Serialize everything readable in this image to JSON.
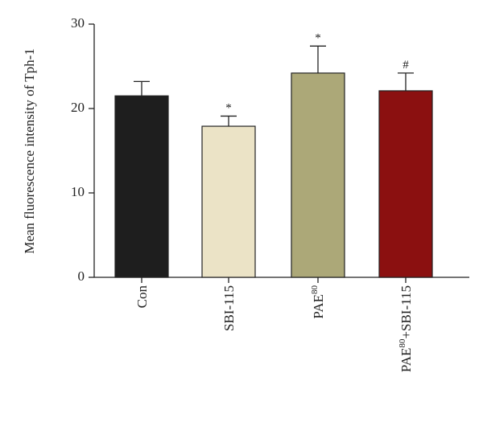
{
  "chart_data": {
    "type": "bar",
    "y_label": "Mean fluorescence intensity of Tph-1",
    "categories": [
      [
        "Con"
      ],
      [
        "SBI-115"
      ],
      [
        "PAE",
        "80"
      ],
      [
        "PAE",
        "80",
        "+SBI-115"
      ]
    ],
    "values": [
      21.5,
      17.9,
      24.2,
      22.1
    ],
    "errors": [
      1.7,
      1.2,
      3.2,
      2.1
    ],
    "annotations": [
      null,
      "*",
      "*",
      "#"
    ],
    "colors": [
      "#1e1e1e",
      "#ebe3c6",
      "#aca878",
      "#8b1010"
    ],
    "ylim": [
      0,
      30
    ],
    "yticks": [
      0,
      10,
      20,
      30
    ]
  }
}
